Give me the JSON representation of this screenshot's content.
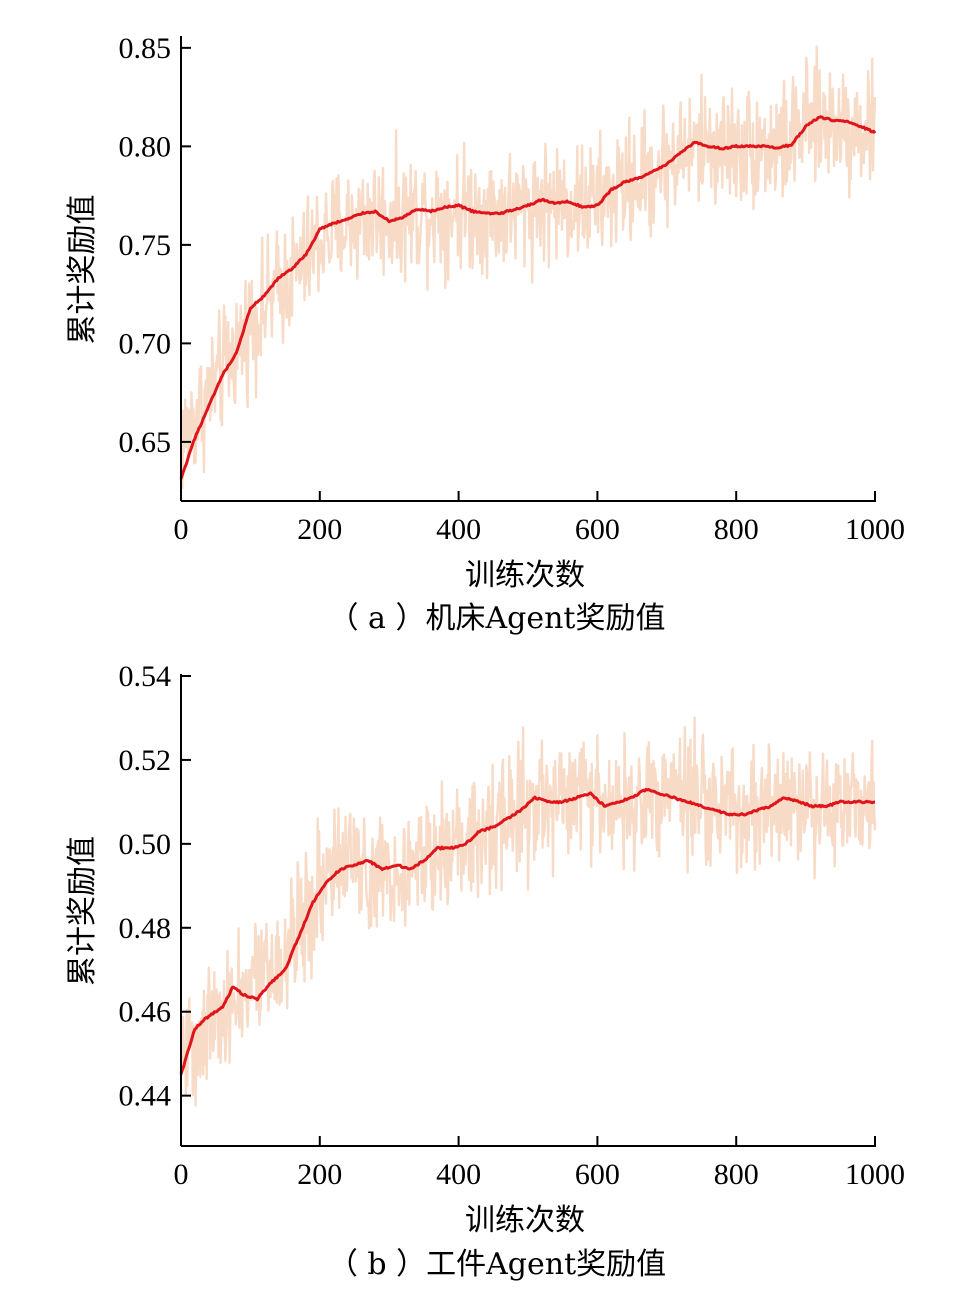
{
  "chart_data": [
    {
      "type": "line",
      "caption": "（ a ）机床Agent奖励值",
      "xlabel": "训练次数",
      "ylabel": "累计奖励值",
      "xlim": [
        0,
        1000
      ],
      "ylim": [
        0.62,
        0.855
      ],
      "xticks": [
        0,
        200,
        400,
        600,
        800,
        1000
      ],
      "xtick_labels": [
        "0",
        "200",
        "400",
        "600",
        "800",
        "1000"
      ],
      "yticks": [
        0.65,
        0.7,
        0.75,
        0.8,
        0.85
      ],
      "ytick_labels": [
        "0.65",
        "0.70",
        "0.75",
        "0.80",
        "0.85"
      ],
      "grid": false,
      "series": [
        {
          "role": "raw",
          "color": "#f8d9c4",
          "x": [
            0,
            25,
            50,
            75,
            100,
            125,
            150,
            175,
            200,
            225,
            250,
            275,
            300,
            325,
            350,
            375,
            400,
            425,
            450,
            475,
            500,
            525,
            550,
            575,
            600,
            625,
            650,
            675,
            700,
            725,
            750,
            775,
            800,
            825,
            850,
            875,
            900,
            925,
            950,
            975,
            1000
          ],
          "noise": 0.045,
          "values": [
            0.65,
            0.665,
            0.68,
            0.695,
            0.71,
            0.72,
            0.732,
            0.74,
            0.752,
            0.758,
            0.762,
            0.765,
            0.764,
            0.765,
            0.767,
            0.768,
            0.769,
            0.768,
            0.767,
            0.768,
            0.77,
            0.772,
            0.772,
            0.771,
            0.772,
            0.777,
            0.782,
            0.786,
            0.792,
            0.797,
            0.801,
            0.8,
            0.8,
            0.8,
            0.8,
            0.802,
            0.81,
            0.813,
            0.812,
            0.81,
            0.808
          ]
        },
        {
          "role": "smoothed",
          "color": "#e0151c",
          "x": [
            0,
            20,
            40,
            60,
            80,
            100,
            120,
            140,
            160,
            180,
            200,
            220,
            240,
            260,
            280,
            300,
            320,
            340,
            360,
            380,
            400,
            420,
            440,
            460,
            480,
            500,
            520,
            540,
            560,
            580,
            600,
            620,
            640,
            660,
            680,
            700,
            720,
            740,
            760,
            780,
            800,
            820,
            840,
            860,
            880,
            900,
            920,
            940,
            960,
            980,
            1000
          ],
          "values": [
            0.631,
            0.652,
            0.668,
            0.684,
            0.695,
            0.718,
            0.724,
            0.733,
            0.738,
            0.745,
            0.758,
            0.761,
            0.763,
            0.766,
            0.767,
            0.762,
            0.764,
            0.768,
            0.767,
            0.769,
            0.77,
            0.767,
            0.766,
            0.766,
            0.768,
            0.77,
            0.773,
            0.771,
            0.772,
            0.769,
            0.77,
            0.778,
            0.782,
            0.784,
            0.787,
            0.791,
            0.797,
            0.802,
            0.8,
            0.799,
            0.8,
            0.8,
            0.8,
            0.799,
            0.801,
            0.81,
            0.815,
            0.813,
            0.813,
            0.81,
            0.807
          ]
        }
      ]
    },
    {
      "type": "line",
      "caption": "（ b ）工件Agent奖励值",
      "xlabel": "训练次数",
      "ylabel": "累计奖励值",
      "xlim": [
        0,
        1000
      ],
      "ylim": [
        0.428,
        0.54
      ],
      "xticks": [
        0,
        200,
        400,
        600,
        800,
        1000
      ],
      "xtick_labels": [
        "0",
        "200",
        "400",
        "600",
        "800",
        "1000"
      ],
      "yticks": [
        0.44,
        0.46,
        0.48,
        0.5,
        0.52,
        0.54
      ],
      "ytick_labels": [
        "0.44",
        "0.46",
        "0.48",
        "0.50",
        "0.52",
        "0.54"
      ],
      "grid": false,
      "series": [
        {
          "role": "raw",
          "color": "#f8d9c4",
          "x": [
            0,
            25,
            50,
            75,
            100,
            125,
            150,
            175,
            200,
            225,
            250,
            275,
            300,
            325,
            350,
            375,
            400,
            425,
            450,
            475,
            500,
            525,
            550,
            575,
            600,
            625,
            650,
            675,
            700,
            725,
            750,
            775,
            800,
            825,
            850,
            875,
            900,
            925,
            950,
            975,
            1000
          ],
          "noise": 0.022,
          "values": [
            0.45,
            0.455,
            0.46,
            0.462,
            0.465,
            0.468,
            0.475,
            0.482,
            0.49,
            0.494,
            0.495,
            0.495,
            0.494,
            0.495,
            0.497,
            0.499,
            0.5,
            0.503,
            0.505,
            0.507,
            0.51,
            0.511,
            0.511,
            0.511,
            0.511,
            0.51,
            0.511,
            0.512,
            0.512,
            0.511,
            0.509,
            0.508,
            0.508,
            0.507,
            0.508,
            0.51,
            0.51,
            0.509,
            0.509,
            0.509,
            0.509
          ]
        },
        {
          "role": "smoothed",
          "color": "#e0151c",
          "x": [
            0,
            20,
            40,
            60,
            75,
            90,
            110,
            130,
            150,
            170,
            190,
            210,
            230,
            250,
            270,
            290,
            310,
            330,
            350,
            370,
            390,
            410,
            430,
            450,
            470,
            490,
            510,
            530,
            550,
            570,
            590,
            610,
            630,
            650,
            670,
            690,
            710,
            730,
            750,
            770,
            790,
            810,
            830,
            850,
            870,
            890,
            910,
            930,
            950,
            970,
            1000
          ],
          "values": [
            0.445,
            0.456,
            0.459,
            0.461,
            0.466,
            0.464,
            0.463,
            0.467,
            0.47,
            0.478,
            0.486,
            0.491,
            0.494,
            0.495,
            0.496,
            0.494,
            0.495,
            0.494,
            0.496,
            0.499,
            0.499,
            0.5,
            0.503,
            0.504,
            0.506,
            0.508,
            0.511,
            0.51,
            0.51,
            0.511,
            0.512,
            0.509,
            0.51,
            0.511,
            0.513,
            0.512,
            0.511,
            0.51,
            0.509,
            0.508,
            0.507,
            0.507,
            0.508,
            0.509,
            0.511,
            0.51,
            0.509,
            0.509,
            0.51,
            0.51,
            0.51
          ]
        }
      ]
    }
  ]
}
